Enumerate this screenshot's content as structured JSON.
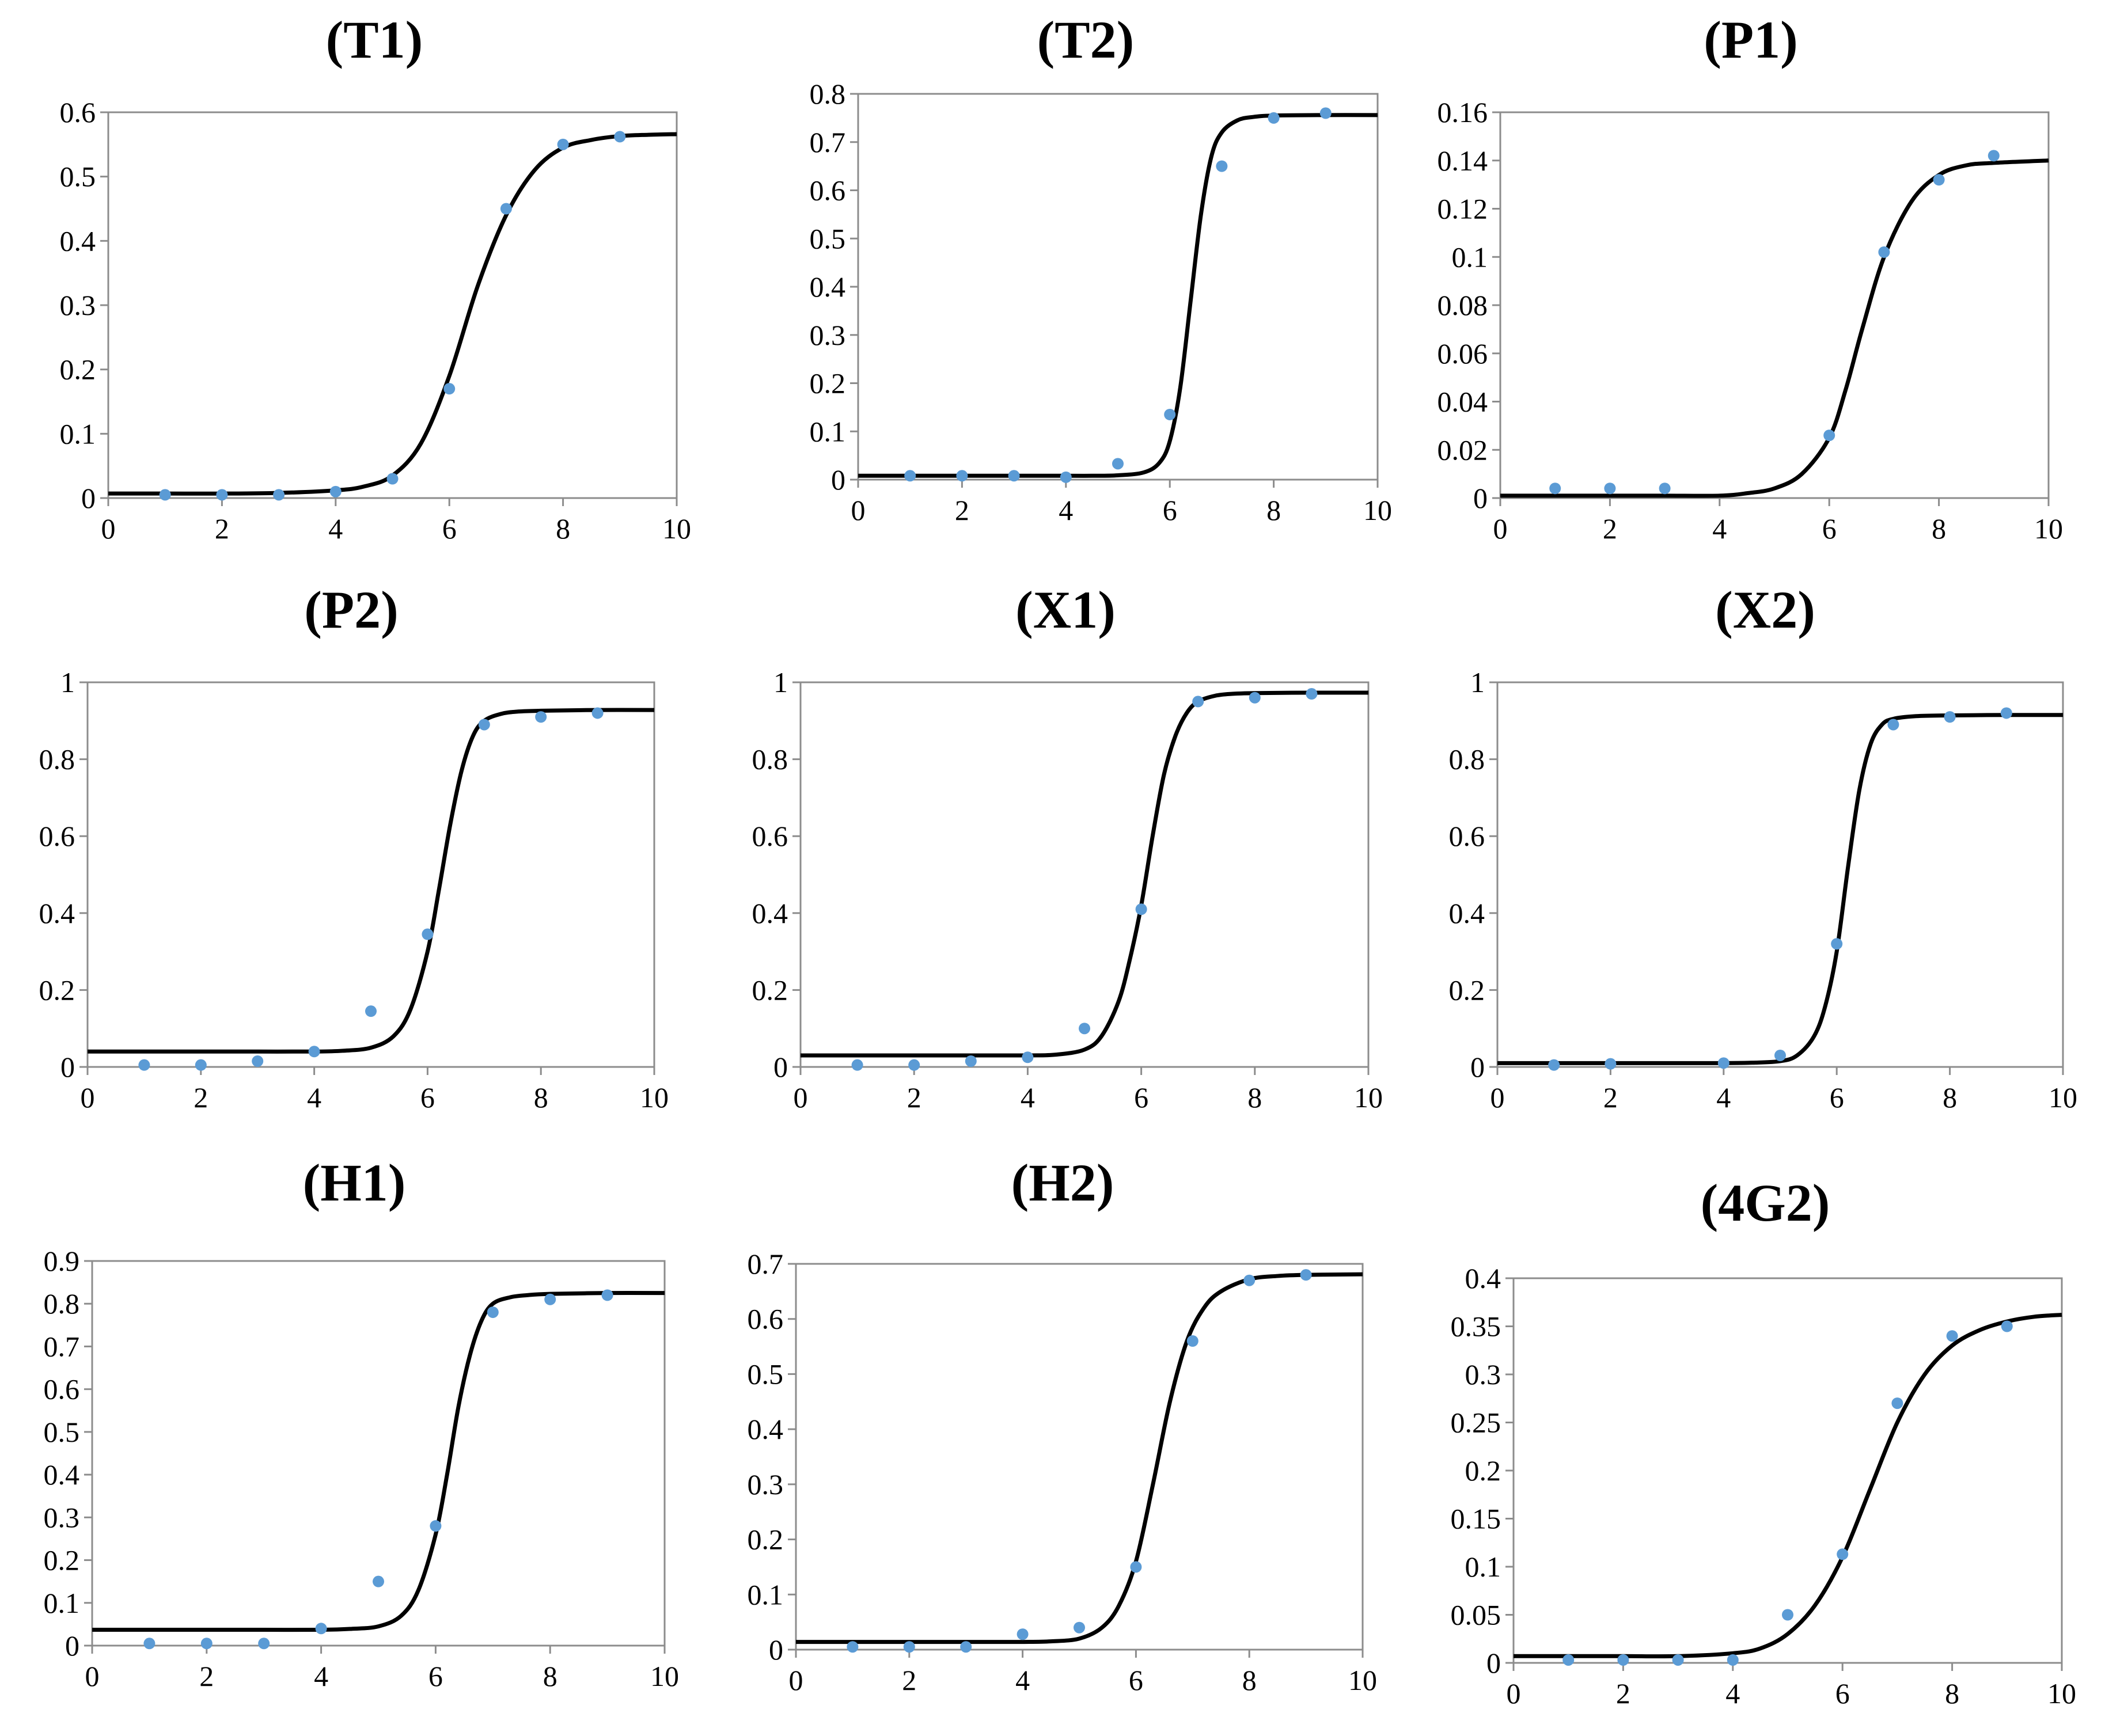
{
  "chart_data": [
    {
      "type": "scatter",
      "title": "(T1)",
      "xlim": [
        0,
        10
      ],
      "ylim": [
        0,
        0.6
      ],
      "xticks": [
        0,
        2,
        4,
        6,
        8,
        10
      ],
      "yticks": [
        0,
        0.1,
        0.2,
        0.3,
        0.4,
        0.5,
        0.6
      ],
      "yticklabels": [
        "0",
        "0.1",
        "0.2",
        "0.3",
        "0.4",
        "0.5",
        "0.6"
      ],
      "grid": false,
      "series": [
        {
          "kind": "points",
          "color": "#5b9bd5",
          "x": [
            1,
            2,
            3,
            4,
            5,
            6,
            7,
            8,
            9
          ],
          "y": [
            0.005,
            0.005,
            0.005,
            0.01,
            0.03,
            0.17,
            0.45,
            0.55,
            0.562
          ]
        },
        {
          "kind": "fit",
          "color": "#000000",
          "x": [
            0,
            1,
            2,
            3,
            4,
            4.5,
            5,
            5.5,
            6,
            6.5,
            7,
            7.5,
            8,
            8.5,
            9,
            9.5,
            10
          ],
          "y": [
            0.007,
            0.007,
            0.007,
            0.008,
            0.012,
            0.018,
            0.035,
            0.085,
            0.19,
            0.33,
            0.44,
            0.51,
            0.545,
            0.557,
            0.563,
            0.565,
            0.566
          ]
        }
      ]
    },
    {
      "type": "scatter",
      "title": "(T2)",
      "xlim": [
        0,
        10
      ],
      "ylim": [
        0,
        0.8
      ],
      "xticks": [
        0,
        2,
        4,
        6,
        8,
        10
      ],
      "yticks": [
        0,
        0.1,
        0.2,
        0.3,
        0.4,
        0.5,
        0.6,
        0.7,
        0.8
      ],
      "yticklabels": [
        "0",
        "0.1",
        "0.2",
        "0.3",
        "0.4",
        "0.5",
        "0.6",
        "0.7",
        "0.8"
      ],
      "grid": false,
      "series": [
        {
          "kind": "points",
          "color": "#5b9bd5",
          "x": [
            1,
            2,
            3,
            4,
            5,
            6,
            7,
            8,
            9
          ],
          "y": [
            0.008,
            0.008,
            0.008,
            0.005,
            0.033,
            0.135,
            0.65,
            0.75,
            0.76
          ]
        },
        {
          "kind": "fit",
          "color": "#000000",
          "x": [
            0,
            1,
            2,
            3,
            4,
            4.5,
            5,
            5.5,
            5.8,
            6,
            6.2,
            6.4,
            6.6,
            6.8,
            7,
            7.3,
            7.6,
            8,
            9,
            10
          ],
          "y": [
            0.008,
            0.008,
            0.008,
            0.008,
            0.008,
            0.008,
            0.009,
            0.015,
            0.035,
            0.08,
            0.19,
            0.37,
            0.55,
            0.67,
            0.72,
            0.745,
            0.752,
            0.755,
            0.756,
            0.756
          ]
        }
      ]
    },
    {
      "type": "scatter",
      "title": "(P1)",
      "xlim": [
        0,
        10
      ],
      "ylim": [
        0,
        0.16
      ],
      "xticks": [
        0,
        2,
        4,
        6,
        8,
        10
      ],
      "yticks": [
        0,
        0.02,
        0.04,
        0.06,
        0.08,
        0.1,
        0.12,
        0.14,
        0.16
      ],
      "yticklabels": [
        "0",
        "0.02",
        "0.04",
        "0.06",
        "0.08",
        "0.1",
        "0.12",
        "0.14",
        "0.16"
      ],
      "grid": false,
      "series": [
        {
          "kind": "points",
          "color": "#5b9bd5",
          "x": [
            1,
            2,
            3,
            6,
            7,
            8,
            9
          ],
          "y": [
            0.004,
            0.004,
            0.004,
            0.026,
            0.102,
            0.132,
            0.142
          ]
        },
        {
          "kind": "fit",
          "color": "#000000",
          "x": [
            0,
            1,
            2,
            3,
            4,
            4.5,
            5,
            5.5,
            6,
            6.3,
            6.6,
            7,
            7.5,
            8,
            8.5,
            9,
            10
          ],
          "y": [
            0.001,
            0.001,
            0.001,
            0.001,
            0.001,
            0.002,
            0.004,
            0.01,
            0.025,
            0.045,
            0.07,
            0.1,
            0.123,
            0.134,
            0.138,
            0.139,
            0.14
          ]
        }
      ]
    },
    {
      "type": "scatter",
      "title": "(P2)",
      "xlim": [
        0,
        10
      ],
      "ylim": [
        0,
        1
      ],
      "xticks": [
        0,
        2,
        4,
        6,
        8,
        10
      ],
      "yticks": [
        0,
        0.2,
        0.4,
        0.6,
        0.8,
        1
      ],
      "yticklabels": [
        "0",
        "0.2",
        "0.4",
        "0.6",
        "0.8",
        "1"
      ],
      "grid": false,
      "series": [
        {
          "kind": "points",
          "color": "#5b9bd5",
          "x": [
            1,
            2,
            3,
            4,
            5,
            6,
            7,
            8,
            9
          ],
          "y": [
            0.005,
            0.005,
            0.015,
            0.04,
            0.145,
            0.345,
            0.89,
            0.91,
            0.92
          ]
        },
        {
          "kind": "fit",
          "color": "#000000",
          "x": [
            0,
            1,
            2,
            3,
            4,
            4.5,
            5,
            5.4,
            5.7,
            6,
            6.2,
            6.4,
            6.6,
            6.8,
            7,
            7.3,
            7.6,
            8,
            9,
            10
          ],
          "y": [
            0.04,
            0.04,
            0.04,
            0.04,
            0.04,
            0.042,
            0.05,
            0.08,
            0.15,
            0.3,
            0.46,
            0.63,
            0.77,
            0.86,
            0.9,
            0.918,
            0.924,
            0.926,
            0.928,
            0.928
          ]
        }
      ]
    },
    {
      "type": "scatter",
      "title": "(X1)",
      "xlim": [
        0,
        10
      ],
      "ylim": [
        0,
        1
      ],
      "xticks": [
        0,
        2,
        4,
        6,
        8,
        10
      ],
      "yticks": [
        0,
        0.2,
        0.4,
        0.6,
        0.8,
        1
      ],
      "yticklabels": [
        "0",
        "0.2",
        "0.4",
        "0.6",
        "0.8",
        "1"
      ],
      "grid": false,
      "series": [
        {
          "kind": "points",
          "color": "#5b9bd5",
          "x": [
            1,
            2,
            3,
            4,
            5,
            6,
            7,
            8,
            9
          ],
          "y": [
            0.005,
            0.005,
            0.015,
            0.025,
            0.1,
            0.41,
            0.95,
            0.96,
            0.97
          ]
        },
        {
          "kind": "fit",
          "color": "#000000",
          "x": [
            0,
            1,
            2,
            3,
            4,
            4.5,
            5,
            5.3,
            5.6,
            5.8,
            6,
            6.2,
            6.4,
            6.6,
            6.8,
            7,
            7.3,
            7.6,
            8,
            9,
            10
          ],
          "y": [
            0.03,
            0.03,
            0.03,
            0.03,
            0.03,
            0.032,
            0.045,
            0.08,
            0.17,
            0.28,
            0.42,
            0.6,
            0.76,
            0.86,
            0.92,
            0.95,
            0.965,
            0.97,
            0.972,
            0.973,
            0.973
          ]
        }
      ]
    },
    {
      "type": "scatter",
      "title": "(X2)",
      "xlim": [
        0,
        10
      ],
      "ylim": [
        0,
        1
      ],
      "xticks": [
        0,
        2,
        4,
        6,
        8,
        10
      ],
      "yticks": [
        0,
        0.2,
        0.4,
        0.6,
        0.8,
        1
      ],
      "yticklabels": [
        "0",
        "0.2",
        "0.4",
        "0.6",
        "0.8",
        "1"
      ],
      "grid": false,
      "series": [
        {
          "kind": "points",
          "color": "#5b9bd5",
          "x": [
            1,
            2,
            4,
            5,
            6,
            7,
            8,
            9
          ],
          "y": [
            0.005,
            0.008,
            0.01,
            0.03,
            0.32,
            0.89,
            0.91,
            0.92
          ]
        },
        {
          "kind": "fit",
          "color": "#000000",
          "x": [
            0,
            1,
            2,
            3,
            4,
            4.5,
            5,
            5.3,
            5.6,
            5.8,
            6,
            6.2,
            6.4,
            6.6,
            6.8,
            7,
            7.4,
            8,
            9,
            10
          ],
          "y": [
            0.01,
            0.01,
            0.01,
            0.01,
            0.01,
            0.011,
            0.015,
            0.03,
            0.08,
            0.16,
            0.3,
            0.52,
            0.72,
            0.84,
            0.89,
            0.905,
            0.912,
            0.914,
            0.915,
            0.915
          ]
        }
      ]
    },
    {
      "type": "scatter",
      "title": "(H1)",
      "xlim": [
        0,
        10
      ],
      "ylim": [
        0,
        0.9
      ],
      "xticks": [
        0,
        2,
        4,
        6,
        8,
        10
      ],
      "yticks": [
        0,
        0.1,
        0.2,
        0.3,
        0.4,
        0.5,
        0.6,
        0.7,
        0.8,
        0.9
      ],
      "yticklabels": [
        "0",
        "0.1",
        "0.2",
        "0.3",
        "0.4",
        "0.5",
        "0.6",
        "0.7",
        "0.8",
        "0.9"
      ],
      "grid": false,
      "series": [
        {
          "kind": "points",
          "color": "#5b9bd5",
          "x": [
            1,
            2,
            3,
            4,
            5,
            6,
            7,
            8,
            9
          ],
          "y": [
            0.005,
            0.005,
            0.005,
            0.04,
            0.15,
            0.28,
            0.78,
            0.81,
            0.82
          ]
        },
        {
          "kind": "fit",
          "color": "#000000",
          "x": [
            0,
            1,
            2,
            3,
            4,
            4.5,
            5,
            5.4,
            5.7,
            6,
            6.2,
            6.4,
            6.6,
            6.8,
            7,
            7.3,
            7.6,
            8,
            9,
            10
          ],
          "y": [
            0.037,
            0.037,
            0.037,
            0.037,
            0.037,
            0.039,
            0.045,
            0.07,
            0.13,
            0.26,
            0.4,
            0.56,
            0.68,
            0.76,
            0.8,
            0.815,
            0.82,
            0.823,
            0.825,
            0.825
          ]
        }
      ]
    },
    {
      "type": "scatter",
      "title": "(H2)",
      "xlim": [
        0,
        10
      ],
      "ylim": [
        0,
        0.7
      ],
      "xticks": [
        0,
        2,
        4,
        6,
        8,
        10
      ],
      "yticks": [
        0,
        0.1,
        0.2,
        0.3,
        0.4,
        0.5,
        0.6,
        0.7
      ],
      "yticklabels": [
        "0",
        "0.1",
        "0.2",
        "0.3",
        "0.4",
        "0.5",
        "0.6",
        "0.7"
      ],
      "grid": false,
      "series": [
        {
          "kind": "points",
          "color": "#5b9bd5",
          "x": [
            1,
            2,
            3,
            4,
            5,
            6,
            7,
            8,
            9
          ],
          "y": [
            0.005,
            0.005,
            0.005,
            0.028,
            0.04,
            0.15,
            0.56,
            0.67,
            0.68
          ]
        },
        {
          "kind": "fit",
          "color": "#000000",
          "x": [
            0,
            1,
            2,
            3,
            4,
            4.5,
            5,
            5.4,
            5.7,
            6,
            6.3,
            6.6,
            6.9,
            7.2,
            7.5,
            8,
            8.5,
            9,
            10
          ],
          "y": [
            0.014,
            0.014,
            0.014,
            0.014,
            0.014,
            0.015,
            0.02,
            0.04,
            0.08,
            0.16,
            0.3,
            0.45,
            0.56,
            0.62,
            0.65,
            0.672,
            0.678,
            0.68,
            0.681
          ]
        }
      ]
    },
    {
      "type": "scatter",
      "title": "(4G2)",
      "xlim": [
        0,
        10
      ],
      "ylim": [
        0,
        0.4
      ],
      "xticks": [
        0,
        2,
        4,
        6,
        8,
        10
      ],
      "yticks": [
        0,
        0.05,
        0.1,
        0.15,
        0.2,
        0.25,
        0.3,
        0.35,
        0.4
      ],
      "yticklabels": [
        "0",
        "0.05",
        "0.1",
        "0.15",
        "0.2",
        "0.25",
        "0.3",
        "0.35",
        "0.4"
      ],
      "grid": false,
      "series": [
        {
          "kind": "points",
          "color": "#5b9bd5",
          "x": [
            1,
            2,
            3,
            4,
            5,
            6,
            7,
            8,
            9
          ],
          "y": [
            0.003,
            0.003,
            0.003,
            0.003,
            0.05,
            0.113,
            0.27,
            0.34,
            0.35
          ]
        },
        {
          "kind": "fit",
          "color": "#000000",
          "x": [
            0,
            1,
            2,
            3,
            4,
            4.5,
            5,
            5.5,
            6,
            6.5,
            7,
            7.5,
            8,
            8.5,
            9,
            9.5,
            10
          ],
          "y": [
            0.007,
            0.007,
            0.007,
            0.007,
            0.01,
            0.015,
            0.03,
            0.06,
            0.11,
            0.18,
            0.25,
            0.3,
            0.33,
            0.346,
            0.355,
            0.36,
            0.362
          ]
        }
      ]
    }
  ]
}
